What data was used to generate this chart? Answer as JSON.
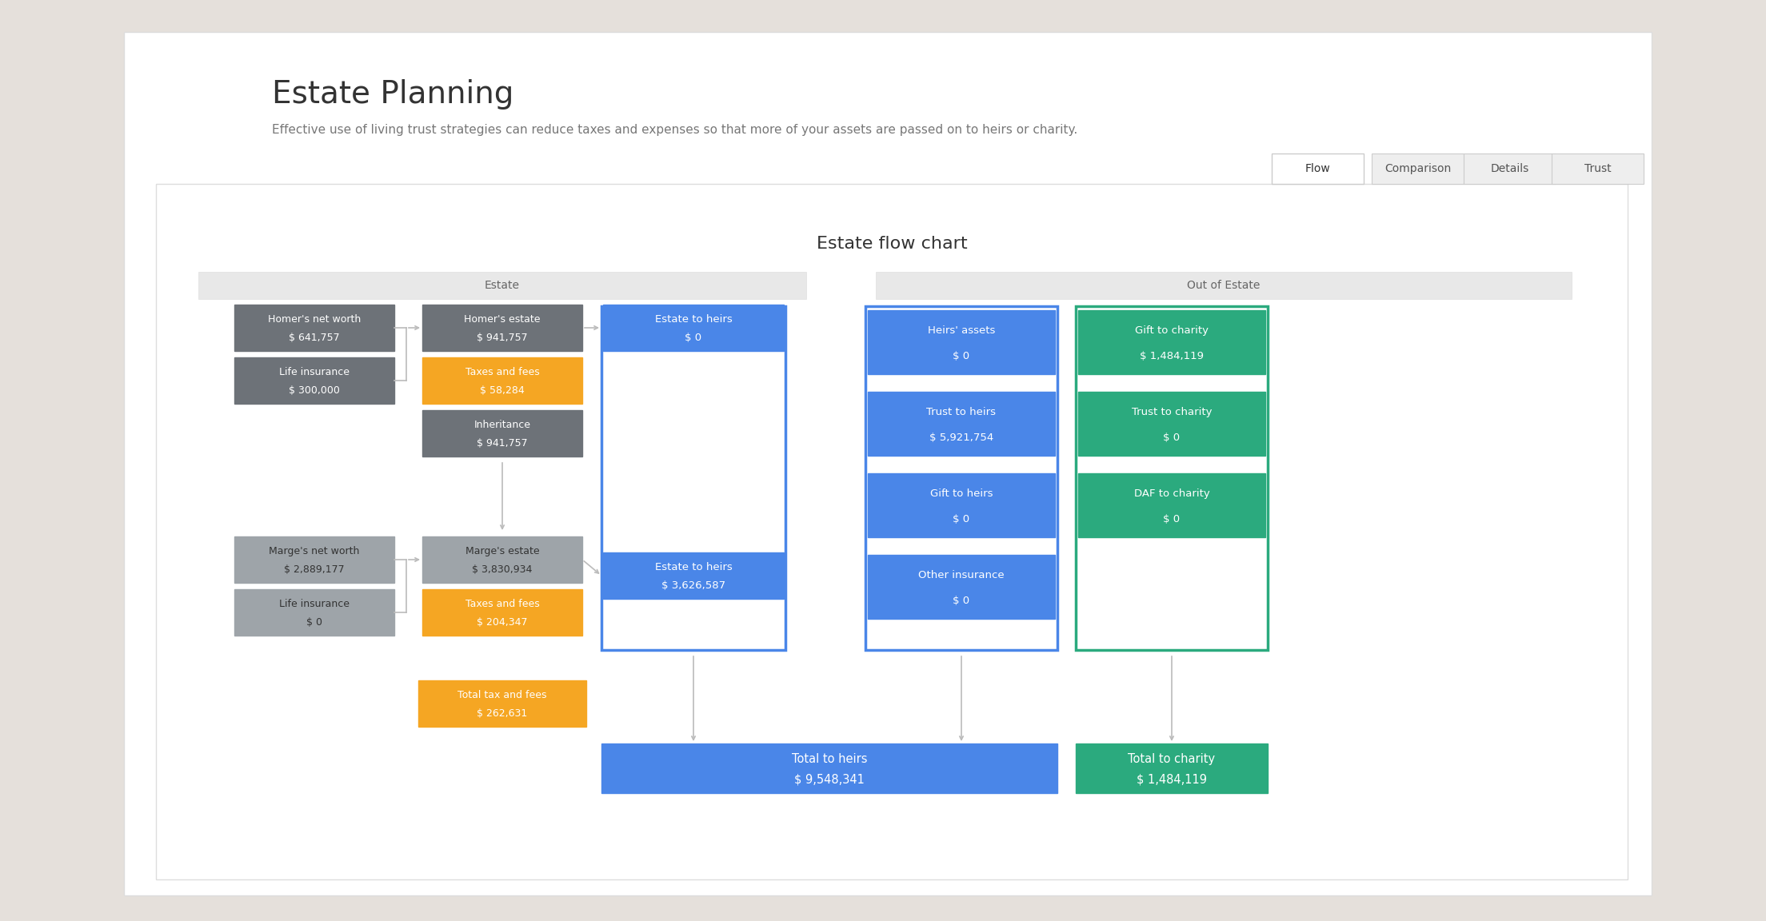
{
  "bg_outer": "#e5e0db",
  "bg_page": "#ffffff",
  "title": "Estate Planning",
  "subtitle": "Effective use of living trust strategies can reduce taxes and expenses so that more of your assets are passed on to heirs or charity.",
  "tabs": [
    "Flow",
    "Comparison",
    "Details",
    "Trust"
  ],
  "active_tab": "Flow",
  "chart_title": "Estate flow chart",
  "section_estate_label": "Estate",
  "section_out_of_estate_label": "Out of Estate",
  "color_gray_dark": "#6d7278",
  "color_gray_light": "#9ea4a9",
  "color_orange": "#f5a623",
  "color_blue": "#4a86e8",
  "color_green": "#2baa7e",
  "color_section_bg": "#ebebeb",
  "color_arrow": "#bbbbbb",
  "color_text_dark": "#444444",
  "color_text_mid": "#666666",
  "color_white": "#ffffff"
}
